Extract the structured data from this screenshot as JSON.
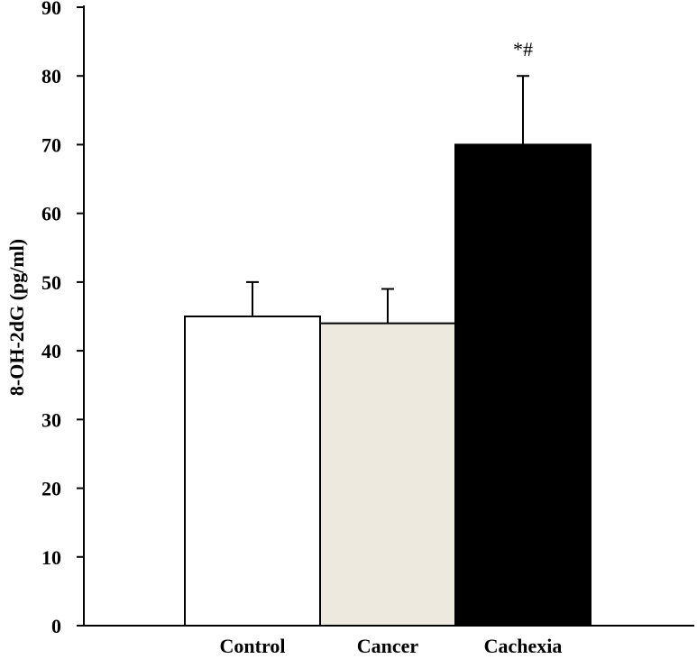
{
  "chart_data": {
    "type": "bar",
    "title": "",
    "xlabel": "",
    "ylabel": "8-OH-2dG (pg/ml)",
    "ylim": [
      0,
      90
    ],
    "yticks": [
      0,
      10,
      20,
      30,
      40,
      50,
      60,
      70,
      80,
      90
    ],
    "categories": [
      "Control",
      "Cancer",
      "Cachexia"
    ],
    "values": [
      45,
      44,
      70
    ],
    "errors": [
      5,
      5,
      10
    ],
    "bar_colors": [
      "#ffffff",
      "#ede9df",
      "#000000"
    ],
    "annotations": [
      {
        "category": "Cachexia",
        "text": "*#"
      }
    ],
    "grid": false,
    "legend": "none"
  }
}
